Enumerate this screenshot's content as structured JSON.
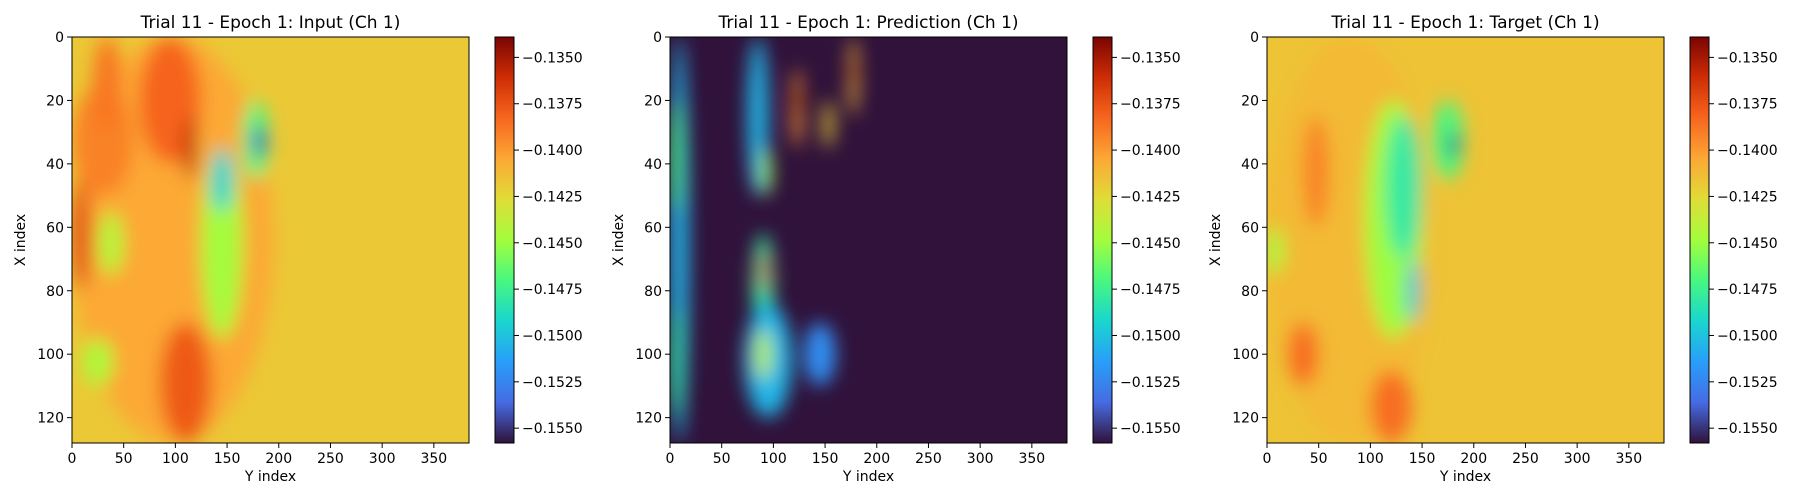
{
  "colormap": "turbo",
  "chart_data": [
    {
      "type": "heatmap",
      "title": "Trial 11 - Epoch 1: Input (Ch 1)",
      "xlabel": "Y index",
      "ylabel": "X index",
      "xlim": [
        0,
        384
      ],
      "ylim": [
        128,
        0
      ],
      "xticks": [
        0,
        50,
        100,
        150,
        200,
        250,
        300,
        350
      ],
      "yticks": [
        0,
        20,
        40,
        60,
        80,
        100,
        120
      ],
      "colorbar": {
        "vmin": -0.1558,
        "vmax": -0.1339,
        "ticks": [
          "-0.1350",
          "-0.1375",
          "-0.1400",
          "-0.1425",
          "-0.1450",
          "-0.1475",
          "-0.1500",
          "-0.1525",
          "-0.1550"
        ]
      },
      "background_value": -0.1418,
      "field": [
        {
          "x0": 0,
          "x1": 195,
          "y0": 0,
          "y1": 128,
          "value": -0.1405
        },
        {
          "x0": 0,
          "x1": 60,
          "y0": 15,
          "y1": 50,
          "value": -0.1392
        },
        {
          "x0": 0,
          "x1": 18,
          "y0": 45,
          "y1": 80,
          "value": -0.1372
        },
        {
          "x0": 20,
          "x1": 48,
          "y0": 0,
          "y1": 30,
          "value": -0.1388
        },
        {
          "x0": 65,
          "x1": 125,
          "y0": 0,
          "y1": 40,
          "value": -0.1382
        },
        {
          "x0": 85,
          "x1": 135,
          "y0": 90,
          "y1": 128,
          "value": -0.1378
        },
        {
          "x0": 10,
          "x1": 40,
          "y0": 95,
          "y1": 110,
          "value": -0.1445
        },
        {
          "x0": 25,
          "x1": 50,
          "y0": 55,
          "y1": 75,
          "value": -0.1442
        },
        {
          "x0": 125,
          "x1": 165,
          "y0": 35,
          "y1": 95,
          "value": -0.1448
        },
        {
          "x0": 135,
          "x1": 155,
          "y0": 35,
          "y1": 55,
          "value": -0.1495
        },
        {
          "x0": 165,
          "x1": 190,
          "y0": 20,
          "y1": 45,
          "value": -0.147
        },
        {
          "x0": 175,
          "x1": 188,
          "y0": 28,
          "y1": 38,
          "value": -0.154
        },
        {
          "x0": 108,
          "x1": 120,
          "y0": 25,
          "y1": 45,
          "value": -0.1355
        }
      ]
    },
    {
      "type": "heatmap",
      "title": "Trial 11 - Epoch 1: Prediction (Ch 1)",
      "xlabel": "Y index",
      "ylabel": "X index",
      "xlim": [
        0,
        384
      ],
      "ylim": [
        128,
        0
      ],
      "xticks": [
        0,
        50,
        100,
        150,
        200,
        250,
        300,
        350
      ],
      "yticks": [
        0,
        20,
        40,
        60,
        80,
        100,
        120
      ],
      "colorbar": {
        "vmin": -0.1558,
        "vmax": -0.1339,
        "ticks": [
          "-0.1350",
          "-0.1375",
          "-0.1400",
          "-0.1425",
          "-0.1450",
          "-0.1475",
          "-0.1500",
          "-0.1525",
          "-0.1550"
        ]
      },
      "background_value": -0.1558,
      "field": [
        {
          "x0": 0,
          "x1": 18,
          "y0": 0,
          "y1": 128,
          "value": -0.1505
        },
        {
          "x0": 0,
          "x1": 12,
          "y0": 20,
          "y1": 55,
          "value": -0.147
        },
        {
          "x0": 0,
          "x1": 12,
          "y0": 85,
          "y1": 120,
          "value": -0.148
        },
        {
          "x0": 75,
          "x1": 95,
          "y0": 0,
          "y1": 50,
          "value": -0.1505
        },
        {
          "x0": 88,
          "x1": 98,
          "y0": 35,
          "y1": 50,
          "value": -0.145
        },
        {
          "x0": 80,
          "x1": 100,
          "y0": 62,
          "y1": 95,
          "value": -0.148
        },
        {
          "x0": 87,
          "x1": 95,
          "y0": 68,
          "y1": 80,
          "value": -0.1365
        },
        {
          "x0": 72,
          "x1": 118,
          "y0": 84,
          "y1": 120,
          "value": -0.1505
        },
        {
          "x0": 82,
          "x1": 98,
          "y0": 92,
          "y1": 108,
          "value": -0.144
        },
        {
          "x0": 118,
          "x1": 128,
          "y0": 10,
          "y1": 35,
          "value": -0.14
        },
        {
          "x0": 121,
          "x1": 127,
          "y0": 15,
          "y1": 25,
          "value": -0.1355
        },
        {
          "x0": 148,
          "x1": 158,
          "y0": 20,
          "y1": 35,
          "value": -0.142
        },
        {
          "x0": 173,
          "x1": 182,
          "y0": 0,
          "y1": 25,
          "value": -0.141
        },
        {
          "x0": 174,
          "x1": 180,
          "y0": 8,
          "y1": 14,
          "value": -0.136
        },
        {
          "x0": 130,
          "x1": 160,
          "y0": 90,
          "y1": 110,
          "value": -0.152
        }
      ]
    },
    {
      "type": "heatmap",
      "title": "Trial 11 - Epoch 1: Target (Ch 1)",
      "xlabel": "Y index",
      "ylabel": "X index",
      "xlim": [
        0,
        384
      ],
      "ylim": [
        128,
        0
      ],
      "xticks": [
        0,
        50,
        100,
        150,
        200,
        250,
        300,
        350
      ],
      "yticks": [
        0,
        20,
        40,
        60,
        80,
        100,
        120
      ],
      "colorbar": {
        "vmin": -0.1558,
        "vmax": -0.1339,
        "ticks": [
          "-0.1350",
          "-0.1375",
          "-0.1400",
          "-0.1425",
          "-0.1450",
          "-0.1475",
          "-0.1500",
          "-0.1525",
          "-0.1550"
        ]
      },
      "background_value": -0.1416,
      "field": [
        {
          "x0": 0,
          "x1": 160,
          "y0": 0,
          "y1": 128,
          "value": -0.1412
        },
        {
          "x0": 0,
          "x1": 15,
          "y0": 60,
          "y1": 75,
          "value": -0.145
        },
        {
          "x0": 35,
          "x1": 60,
          "y0": 25,
          "y1": 60,
          "value": -0.1392
        },
        {
          "x0": 20,
          "x1": 50,
          "y0": 90,
          "y1": 110,
          "value": -0.1385
        },
        {
          "x0": 100,
          "x1": 140,
          "y0": 105,
          "y1": 128,
          "value": -0.1385
        },
        {
          "x0": 95,
          "x1": 150,
          "y0": 20,
          "y1": 95,
          "value": -0.145
        },
        {
          "x0": 115,
          "x1": 150,
          "y0": 25,
          "y1": 70,
          "value": -0.148
        },
        {
          "x0": 135,
          "x1": 148,
          "y0": 70,
          "y1": 90,
          "value": -0.15
        },
        {
          "x0": 160,
          "x1": 190,
          "y0": 20,
          "y1": 45,
          "value": -0.147
        },
        {
          "x0": 176,
          "x1": 186,
          "y0": 30,
          "y1": 38,
          "value": -0.1545
        }
      ]
    }
  ]
}
